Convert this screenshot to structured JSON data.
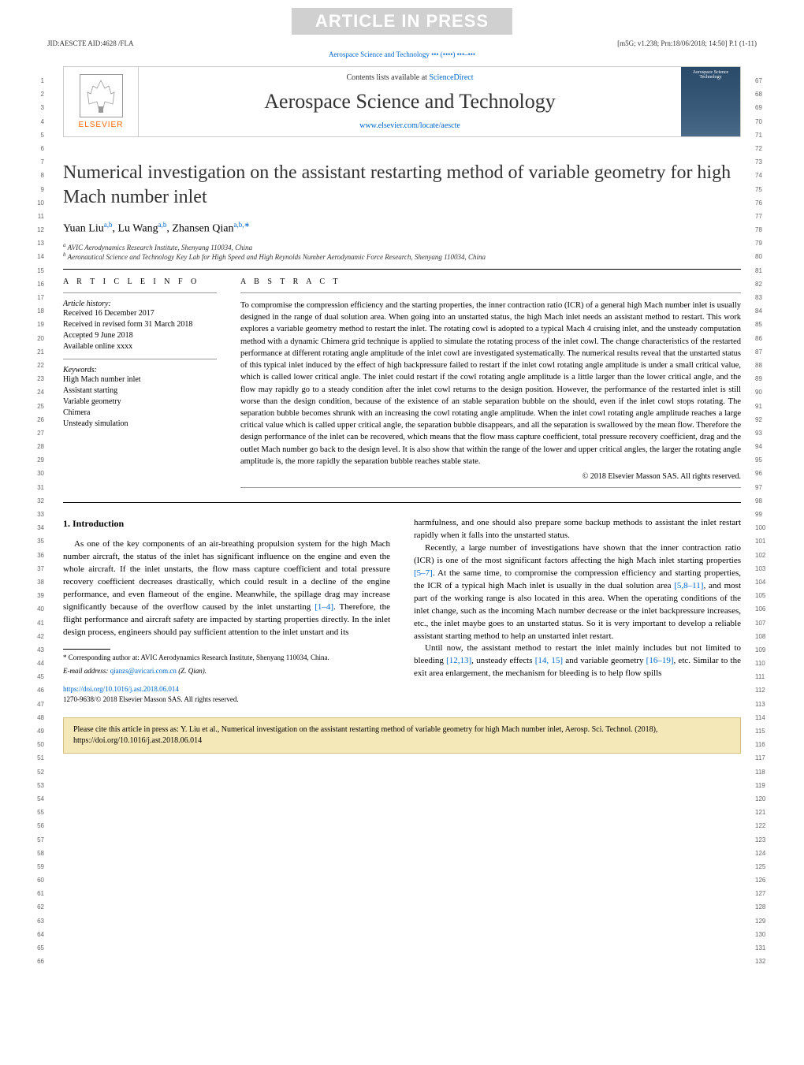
{
  "watermark": "ARTICLE IN PRESS",
  "top_meta": {
    "left": "JID:AESCTE   AID:4628 /FLA",
    "right": "[m5G; v1.238; Prn:18/06/2018; 14:50] P.1 (1-11)"
  },
  "journal_ref": "Aerospace Science and Technology ••• (••••) •••–•••",
  "header": {
    "contents_prefix": "Contents lists available at ",
    "contents_link": "ScienceDirect",
    "journal_name": "Aerospace Science and Technology",
    "journal_url": "www.elsevier.com/locate/aescte",
    "elsevier": "ELSEVIER",
    "cover_text": "Aerospace Science Technology"
  },
  "title": "Numerical investigation on the assistant restarting method of variable geometry for high Mach number inlet",
  "authors": {
    "a1_name": "Yuan Liu",
    "a1_sup": "a,b",
    "a2_name": "Lu Wang",
    "a2_sup": "a,b",
    "a3_name": "Zhansen Qian",
    "a3_sup": "a,b,∗"
  },
  "affiliations": {
    "a": "AVIC Aerodynamics Research Institute, Shenyang 110034, China",
    "b": "Aeronautical Science and Technology Key Lab for High Speed and High Reynolds Number Aerodynamic Force Research, Shenyang 110034, China"
  },
  "article_info": {
    "header": "A R T I C L E   I N F O",
    "history_label": "Article history:",
    "received": "Received 16 December 2017",
    "revised": "Received in revised form 31 March 2018",
    "accepted": "Accepted 9 June 2018",
    "available": "Available online xxxx",
    "keywords_label": "Keywords:",
    "kw1": "High Mach number inlet",
    "kw2": "Assistant starting",
    "kw3": "Variable geometry",
    "kw4": "Chimera",
    "kw5": "Unsteady simulation"
  },
  "abstract": {
    "header": "A B S T R A C T",
    "text": "To compromise the compression efficiency and the starting properties, the inner contraction ratio (ICR) of a general high Mach number inlet is usually designed in the range of dual solution area. When going into an unstarted status, the high Mach inlet needs an assistant method to restart. This work explores a variable geometry method to restart the inlet. The rotating cowl is adopted to a typical Mach 4 cruising inlet, and the unsteady computation method with a dynamic Chimera grid technique is applied to simulate the rotating process of the inlet cowl. The change characteristics of the restarted performance at different rotating angle amplitude of the inlet cowl are investigated systematically. The numerical results reveal that the unstarted status of this typical inlet induced by the effect of high backpressure failed to restart if the inlet cowl rotating angle amplitude is under a small critical value, which is called lower critical angle. The inlet could restart if the cowl rotating angle amplitude is a little larger than the lower critical angle, and the flow may rapidly go to a steady condition after the inlet cowl returns to the design position. However, the performance of the restarted inlet is still worse than the design condition, because of the existence of an stable separation bubble on the should, even if the inlet cowl stops rotating. The separation bubble becomes shrunk with an increasing the cowl rotating angle amplitude. When the inlet cowl rotating angle amplitude reaches a large critical value which is called upper critical angle, the separation bubble disappears, and all the separation is swallowed by the mean flow. Therefore the design performance of the inlet can be recovered, which means that the flow mass capture coefficient, total pressure recovery coefficient, drag and the outlet Mach number go back to the design level. It is also show that within the range of the lower and upper critical angles, the larger the rotating angle amplitude is, the more rapidly the separation bubble reaches stable state.",
    "copyright": "© 2018 Elsevier Masson SAS. All rights reserved."
  },
  "body": {
    "section_heading": "1. Introduction",
    "p1a": "As one of the key components of an air-breathing propulsion system for the high Mach number aircraft, the status of the inlet has significant influence on the engine and even the whole aircraft. If the inlet unstarts, the flow mass capture coefficient and total pressure recovery coefficient decreases drastically, which could result in a decline of the engine performance, and even flameout of the engine. Meanwhile, the spillage drag may increase significantly because of the overflow caused by the inlet unstarting ",
    "p1_ref1": "[1–4]",
    "p1b": ". Therefore, the flight performance and aircraft safety are impacted by starting properties directly. In the inlet design process, engineers should pay sufficient attention to the inlet unstart and its",
    "p2": "harmfulness, and one should also prepare some backup methods to assistant the inlet restart rapidly when it falls into the unstarted status.",
    "p3a": "Recently, a large number of investigations have shown that the inner contraction ratio (ICR) is one of the most significant factors affecting the high Mach inlet starting properties ",
    "p3_ref1": "[5–7]",
    "p3b": ". At the same time, to compromise the compression efficiency and starting properties, the ICR of a typical high Mach inlet is usually in the dual solution area ",
    "p3_ref2": "[5,8–11]",
    "p3c": ", and most part of the working range is also located in this area. When the operating conditions of the inlet change, such as the incoming Mach number decrease or the inlet backpressure increases, etc., the inlet maybe goes to an unstarted status. So it is very important to develop a reliable assistant starting method to help an unstarted inlet restart.",
    "p4a": "Until now, the assistant method to restart the inlet mainly includes but not limited to bleeding ",
    "p4_ref1": "[12,13]",
    "p4b": ", unsteady effects ",
    "p4_ref2": "[14, 15]",
    "p4c": " and variable geometry ",
    "p4_ref3": "[16–19]",
    "p4d": ", etc. Similar to the exit area enlargement, the mechanism for bleeding is to help flow spills"
  },
  "footer": {
    "corresponding": "* Corresponding author at: AVIC Aerodynamics Research Institute, Shenyang 110034, China.",
    "email_label": "E-mail address: ",
    "email": "qianzs@avicari.com.cn",
    "email_suffix": " (Z. Qian).",
    "doi_url": "https://doi.org/10.1016/j.ast.2018.06.014",
    "copyright_line": "1270-9638/© 2018 Elsevier Masson SAS. All rights reserved."
  },
  "cite_box": "Please cite this article in press as: Y. Liu et al., Numerical investigation on the assistant restarting method of variable geometry for high Mach number inlet, Aerosp. Sci. Technol. (2018), https://doi.org/10.1016/j.ast.2018.06.014",
  "line_numbers": {
    "left_start": 1,
    "left_end": 66,
    "right_start": 67,
    "right_end": 132
  },
  "colors": {
    "link": "#0066cc",
    "elsevier_orange": "#ff6600",
    "cite_bg": "#f5e8b8",
    "cite_border": "#d4c080",
    "watermark_bg": "#d0d0d0"
  }
}
